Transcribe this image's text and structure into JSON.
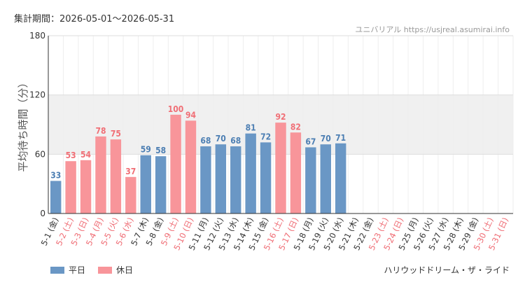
{
  "header": {
    "period_label": "集計期間：2026-05-01～2026-05-31",
    "source": "ユニバリアル  https://usjreal.asumirai.info"
  },
  "legend": {
    "weekday": "平日",
    "holiday": "休日"
  },
  "ride_name": "ハリウッドドリーム・ザ・ライド",
  "colors": {
    "weekday": "#6a97c5",
    "holiday": "#f8959a",
    "weekday_label": "#4d7fb3",
    "holiday_label": "#f06f76",
    "weekday_tick": "#333333",
    "holiday_tick": "#ef6b73",
    "band": "#f0f0f0",
    "grid": "#dddddd"
  },
  "chart_data": {
    "type": "bar",
    "ylabel": "平均待ち時間（分）",
    "ylim": [
      0,
      180
    ],
    "yticks": [
      0,
      60,
      120,
      180
    ],
    "band": [
      60,
      120
    ],
    "categories": [
      "5-1 (金)",
      "5-2 (土)",
      "5-3 (日)",
      "5-4 (月)",
      "5-5 (火)",
      "5-6 (水)",
      "5-7 (木)",
      "5-8 (金)",
      "5-9 (土)",
      "5-10 (日)",
      "5-11 (月)",
      "5-12 (火)",
      "5-13 (水)",
      "5-14 (木)",
      "5-15 (金)",
      "5-16 (土)",
      "5-17 (日)",
      "5-18 (月)",
      "5-19 (火)",
      "5-20 (水)",
      "5-21 (木)",
      "5-22 (金)",
      "5-23 (土)",
      "5-24 (日)",
      "5-25 (月)",
      "5-26 (火)",
      "5-27 (水)",
      "5-28 (木)",
      "5-29 (金)",
      "5-30 (土)",
      "5-31 (日)"
    ],
    "values": [
      33,
      53,
      54,
      78,
      75,
      37,
      59,
      58,
      100,
      94,
      68,
      70,
      68,
      81,
      72,
      92,
      82,
      67,
      70,
      71,
      null,
      null,
      null,
      null,
      null,
      null,
      null,
      null,
      null,
      null,
      null
    ],
    "holiday": [
      false,
      true,
      true,
      true,
      true,
      true,
      false,
      false,
      true,
      true,
      false,
      false,
      false,
      false,
      false,
      true,
      true,
      false,
      false,
      false,
      false,
      false,
      true,
      true,
      false,
      false,
      false,
      false,
      false,
      true,
      true
    ]
  }
}
